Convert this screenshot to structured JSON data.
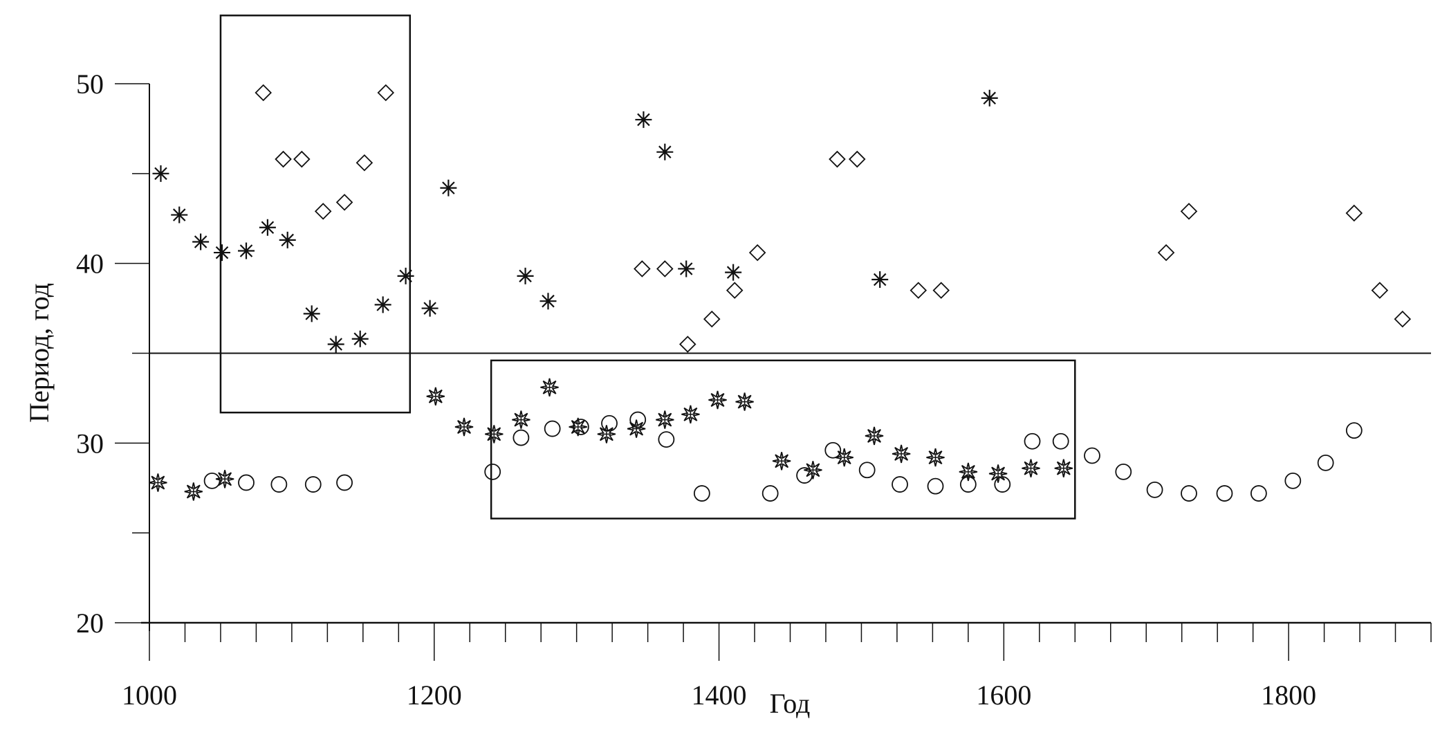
{
  "chart_data": {
    "type": "scatter",
    "title": "",
    "xlabel": "Год",
    "ylabel": "Период, год",
    "xlim": [
      1000,
      1900
    ],
    "ylim": [
      20,
      50
    ],
    "x_ticks": [
      1000,
      1200,
      1400,
      1600,
      1800
    ],
    "y_ticks": [
      20,
      30,
      40,
      50
    ],
    "grid": false,
    "threshold_line": 35,
    "highlight_boxes": [
      {
        "x": [
          1050,
          1183
        ],
        "y": [
          31.7,
          53.8
        ]
      },
      {
        "x": [
          1240,
          1650
        ],
        "y": [
          25.8,
          34.6
        ]
      }
    ],
    "series": [
      {
        "name": "diamond",
        "marker": "diamond",
        "points": [
          [
            1080,
            49.5
          ],
          [
            1094,
            45.8
          ],
          [
            1107,
            45.8
          ],
          [
            1122,
            42.9
          ],
          [
            1137,
            43.4
          ],
          [
            1151,
            45.6
          ],
          [
            1166,
            49.5
          ],
          [
            1346,
            39.7
          ],
          [
            1362,
            39.7
          ],
          [
            1378,
            35.5
          ],
          [
            1395,
            36.9
          ],
          [
            1411,
            38.5
          ],
          [
            1427,
            40.6
          ],
          [
            1483,
            45.8
          ],
          [
            1497,
            45.8
          ],
          [
            1540,
            38.5
          ],
          [
            1556,
            38.5
          ],
          [
            1714,
            40.6
          ],
          [
            1730,
            42.9
          ],
          [
            1846,
            42.8
          ],
          [
            1864,
            38.5
          ],
          [
            1880,
            36.9
          ]
        ]
      },
      {
        "name": "asterisk",
        "marker": "asterisk",
        "points": [
          [
            1008,
            45.0
          ],
          [
            1021,
            42.7
          ],
          [
            1036,
            41.2
          ],
          [
            1051,
            40.6
          ],
          [
            1068,
            40.7
          ],
          [
            1083,
            42.0
          ],
          [
            1097,
            41.3
          ],
          [
            1114,
            37.2
          ],
          [
            1131,
            35.5
          ],
          [
            1148,
            35.8
          ],
          [
            1164,
            37.7
          ],
          [
            1180,
            39.3
          ],
          [
            1197,
            37.5
          ],
          [
            1210,
            44.2
          ],
          [
            1264,
            39.3
          ],
          [
            1280,
            37.9
          ],
          [
            1347,
            48.0
          ],
          [
            1362,
            46.2
          ],
          [
            1377,
            39.7
          ],
          [
            1410,
            39.5
          ],
          [
            1513,
            39.1
          ],
          [
            1590,
            49.2
          ]
        ]
      },
      {
        "name": "star",
        "marker": "star",
        "points": [
          [
            1006,
            27.8
          ],
          [
            1031,
            27.3
          ],
          [
            1053,
            28.0
          ],
          [
            1201,
            32.6
          ],
          [
            1221,
            30.9
          ],
          [
            1242,
            30.5
          ],
          [
            1261,
            31.3
          ],
          [
            1281,
            33.1
          ],
          [
            1301,
            30.9
          ],
          [
            1321,
            30.5
          ],
          [
            1342,
            30.8
          ],
          [
            1362,
            31.3
          ],
          [
            1380,
            31.6
          ],
          [
            1399,
            32.4
          ],
          [
            1418,
            32.3
          ],
          [
            1444,
            29.0
          ],
          [
            1466,
            28.5
          ],
          [
            1488,
            29.2
          ],
          [
            1509,
            30.4
          ],
          [
            1528,
            29.4
          ],
          [
            1552,
            29.2
          ],
          [
            1575,
            28.4
          ],
          [
            1596,
            28.3
          ],
          [
            1619,
            28.6
          ],
          [
            1642,
            28.6
          ]
        ]
      },
      {
        "name": "circle",
        "marker": "circle",
        "points": [
          [
            1044,
            27.9
          ],
          [
            1068,
            27.8
          ],
          [
            1091,
            27.7
          ],
          [
            1115,
            27.7
          ],
          [
            1137,
            27.8
          ],
          [
            1241,
            28.4
          ],
          [
            1261,
            30.3
          ],
          [
            1283,
            30.8
          ],
          [
            1303,
            30.9
          ],
          [
            1323,
            31.1
          ],
          [
            1343,
            31.3
          ],
          [
            1363,
            30.2
          ],
          [
            1388,
            27.2
          ],
          [
            1436,
            27.2
          ],
          [
            1460,
            28.2
          ],
          [
            1480,
            29.6
          ],
          [
            1504,
            28.5
          ],
          [
            1527,
            27.7
          ],
          [
            1552,
            27.6
          ],
          [
            1575,
            27.7
          ],
          [
            1599,
            27.7
          ],
          [
            1620,
            30.1
          ],
          [
            1640,
            30.1
          ],
          [
            1662,
            29.3
          ],
          [
            1684,
            28.4
          ],
          [
            1706,
            27.4
          ],
          [
            1730,
            27.2
          ],
          [
            1755,
            27.2
          ],
          [
            1779,
            27.2
          ],
          [
            1803,
            27.9
          ],
          [
            1826,
            28.9
          ],
          [
            1846,
            30.7
          ]
        ]
      }
    ]
  }
}
